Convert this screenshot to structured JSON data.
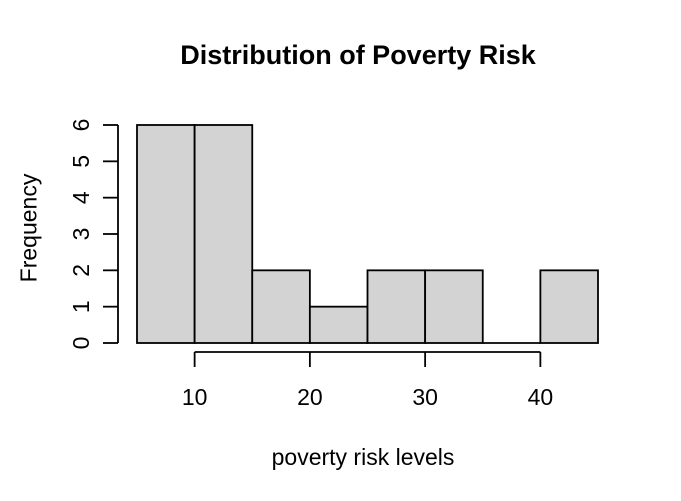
{
  "chart_data": {
    "type": "bar",
    "variant": "histogram",
    "title": "Distribution of Poverty Risk",
    "xlabel": "poverty risk levels",
    "ylabel": "Frequency",
    "bin_edges": [
      5,
      10,
      15,
      20,
      25,
      30,
      35,
      40,
      45
    ],
    "counts": [
      6,
      6,
      2,
      1,
      2,
      2,
      0,
      2
    ],
    "x_tick_values": [
      10,
      20,
      30,
      40
    ],
    "x_tick_labels": [
      "10",
      "20",
      "30",
      "40"
    ],
    "y_tick_values": [
      0,
      1,
      2,
      3,
      4,
      5,
      6
    ],
    "y_tick_labels": [
      "0",
      "1",
      "2",
      "3",
      "4",
      "5",
      "6"
    ],
    "xlim": [
      5,
      45
    ],
    "ylim": [
      0,
      6
    ],
    "grid": false,
    "legend": "none",
    "colors": {
      "bar_fill": "#d3d3d3",
      "bar_border": "#000000",
      "axis": "#000000",
      "text": "#000000",
      "background": "#ffffff"
    }
  }
}
